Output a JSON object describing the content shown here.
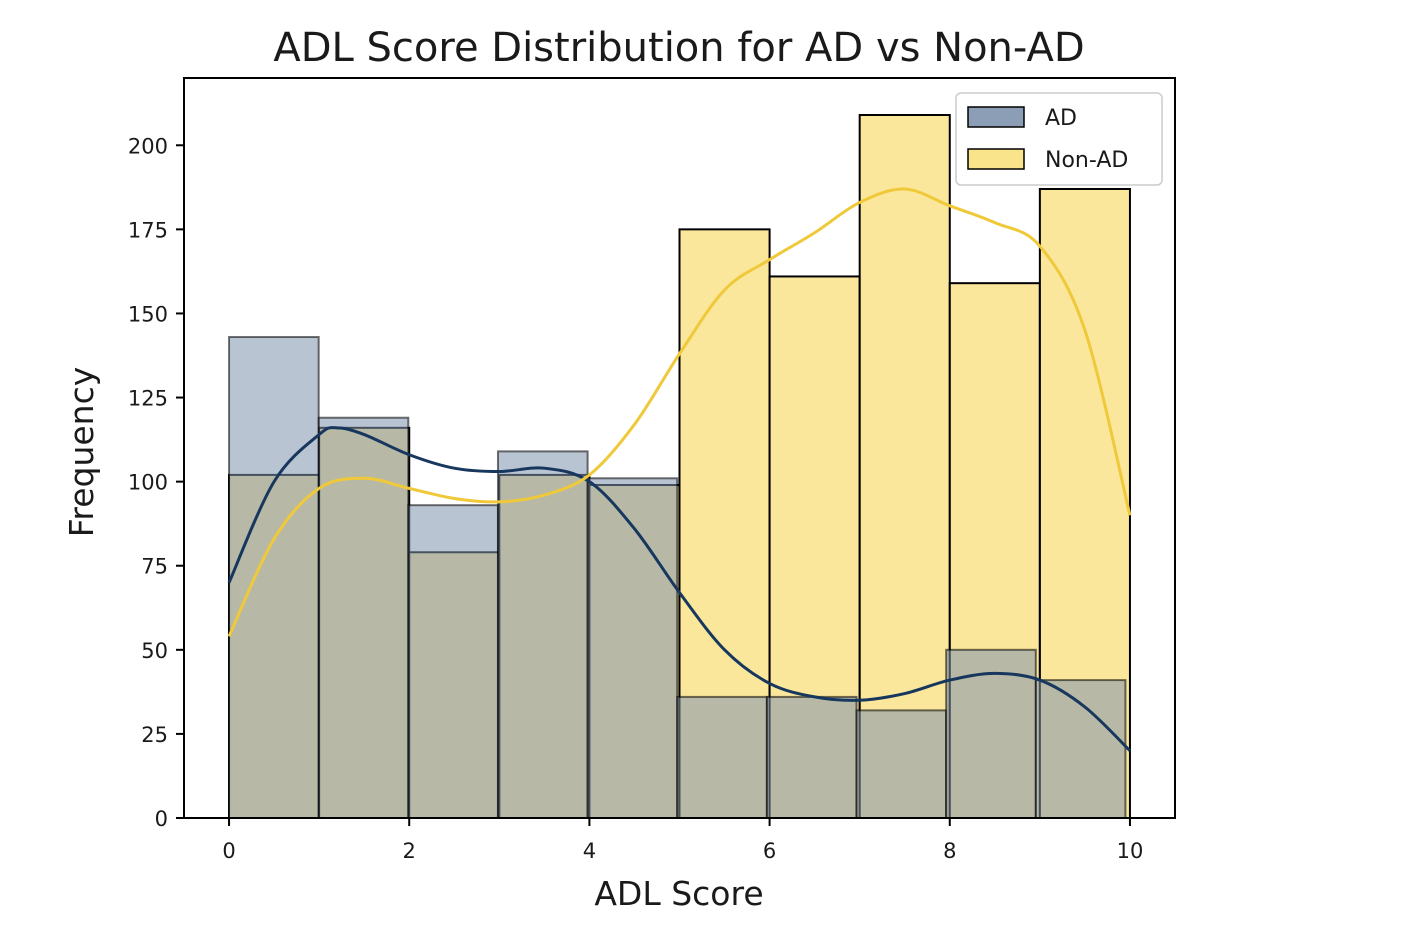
{
  "chart_data": {
    "type": "bar",
    "title": "ADL Score Distribution for AD vs Non-AD",
    "xlabel": "ADL Score",
    "ylabel": "Frequency",
    "xlim": [
      -0.5,
      10.5
    ],
    "ylim": [
      0,
      220
    ],
    "xticks": [
      0,
      2,
      4,
      6,
      8,
      10
    ],
    "yticks": [
      0,
      25,
      50,
      75,
      100,
      125,
      150,
      175,
      200
    ],
    "grid": false,
    "legend_position": "top-right",
    "series": [
      {
        "name": "AD",
        "color": "#7f93ae",
        "line_color": "#17375e",
        "bins": [
          {
            "x0": 0.0,
            "x1": 0.995,
            "value": 143
          },
          {
            "x0": 0.995,
            "x1": 1.99,
            "value": 119
          },
          {
            "x0": 1.99,
            "x1": 2.985,
            "value": 93
          },
          {
            "x0": 2.985,
            "x1": 3.98,
            "value": 109
          },
          {
            "x0": 3.98,
            "x1": 4.975,
            "value": 101
          },
          {
            "x0": 4.975,
            "x1": 5.97,
            "value": 36
          },
          {
            "x0": 5.97,
            "x1": 6.965,
            "value": 36
          },
          {
            "x0": 6.965,
            "x1": 7.96,
            "value": 32
          },
          {
            "x0": 7.96,
            "x1": 8.955,
            "value": 50
          },
          {
            "x0": 8.955,
            "x1": 9.95,
            "value": 41
          }
        ],
        "kde": [
          [
            0,
            70
          ],
          [
            0.5,
            100
          ],
          [
            1,
            114
          ],
          [
            1.2,
            116
          ],
          [
            1.5,
            114
          ],
          [
            2,
            108
          ],
          [
            2.5,
            104
          ],
          [
            3,
            103
          ],
          [
            3.5,
            104
          ],
          [
            4,
            100
          ],
          [
            4.5,
            86
          ],
          [
            5,
            67
          ],
          [
            5.5,
            50
          ],
          [
            6,
            40
          ],
          [
            6.5,
            36
          ],
          [
            7,
            35
          ],
          [
            7.5,
            37
          ],
          [
            8,
            41
          ],
          [
            8.5,
            43
          ],
          [
            9,
            41
          ],
          [
            9.5,
            33
          ],
          [
            10,
            20
          ]
        ]
      },
      {
        "name": "Non-AD",
        "color": "#f9e38b",
        "line_color": "#f0c93a",
        "bins": [
          {
            "x0": 0.0,
            "x1": 1.0,
            "value": 102
          },
          {
            "x0": 1.0,
            "x1": 2.0,
            "value": 116
          },
          {
            "x0": 2.0,
            "x1": 3.0,
            "value": 79
          },
          {
            "x0": 3.0,
            "x1": 4.0,
            "value": 102
          },
          {
            "x0": 4.0,
            "x1": 5.0,
            "value": 99
          },
          {
            "x0": 5.0,
            "x1": 6.0,
            "value": 175
          },
          {
            "x0": 6.0,
            "x1": 7.0,
            "value": 161
          },
          {
            "x0": 7.0,
            "x1": 8.0,
            "value": 209
          },
          {
            "x0": 8.0,
            "x1": 9.0,
            "value": 159
          },
          {
            "x0": 9.0,
            "x1": 10.0,
            "value": 187
          }
        ],
        "kde": [
          [
            0,
            54
          ],
          [
            0.5,
            83
          ],
          [
            1,
            98
          ],
          [
            1.5,
            101
          ],
          [
            2,
            98
          ],
          [
            2.5,
            95
          ],
          [
            3,
            94
          ],
          [
            3.5,
            96
          ],
          [
            4,
            102
          ],
          [
            4.5,
            117
          ],
          [
            5,
            138
          ],
          [
            5.5,
            157
          ],
          [
            6,
            166
          ],
          [
            6.5,
            174
          ],
          [
            7,
            183
          ],
          [
            7.5,
            187
          ],
          [
            8,
            182
          ],
          [
            8.5,
            177
          ],
          [
            9,
            170
          ],
          [
            9.5,
            145
          ],
          [
            10,
            90
          ]
        ]
      }
    ]
  }
}
